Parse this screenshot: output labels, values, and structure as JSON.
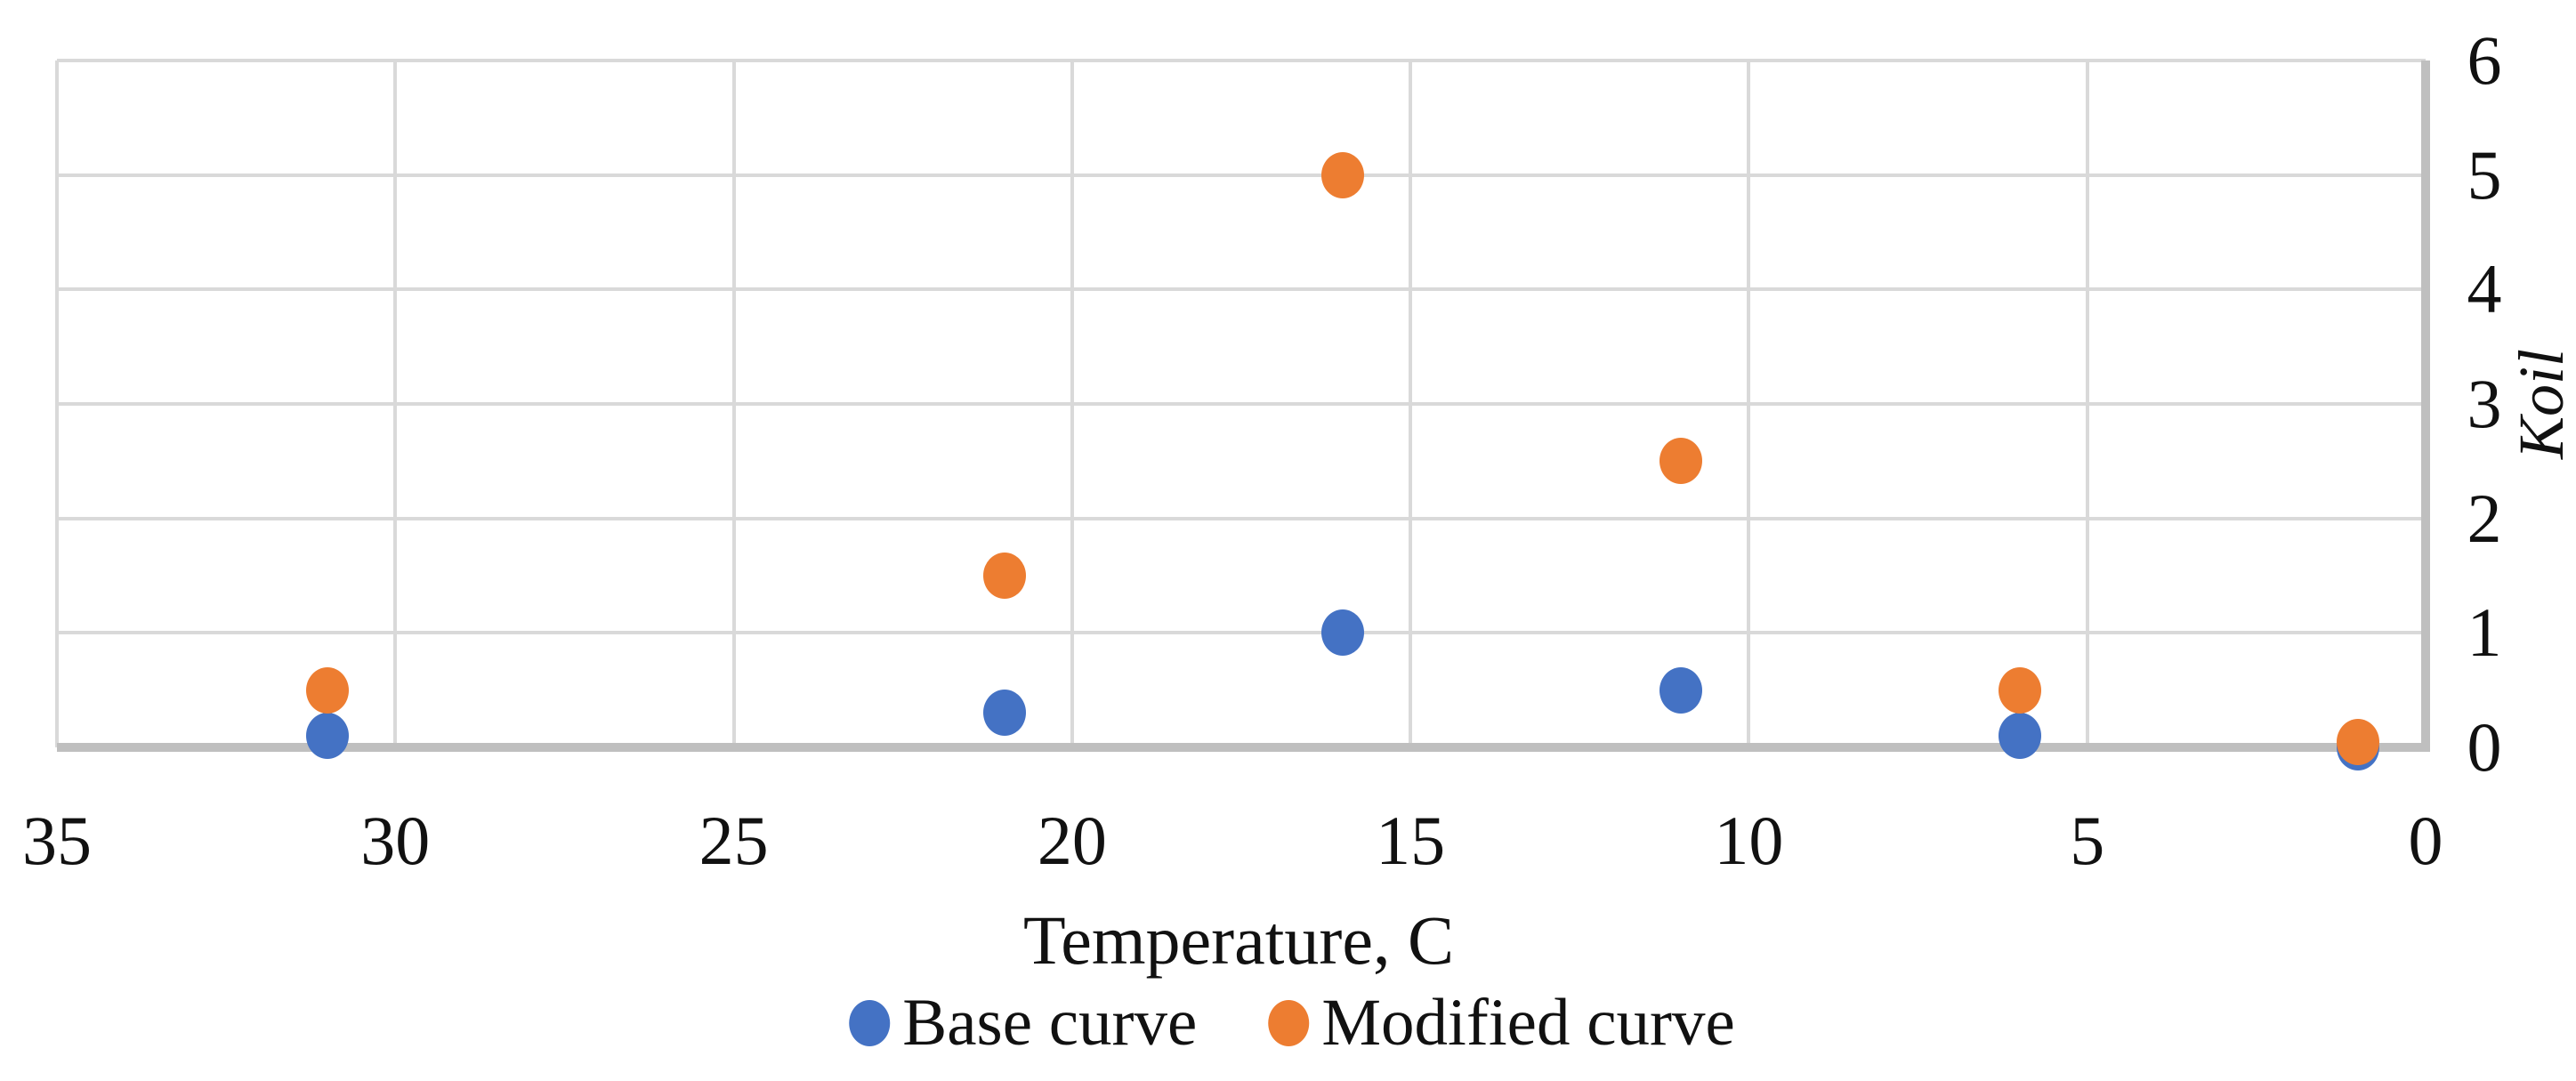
{
  "chart_data": {
    "type": "scatter",
    "title": "",
    "xlabel": "Temperature, C",
    "ylabel": "Koil",
    "grid": true,
    "legend_position": "bottom",
    "x_axis": {
      "min": 35,
      "max": 0,
      "reversed": true,
      "ticks": [
        35,
        30,
        25,
        20,
        15,
        10,
        5,
        0
      ]
    },
    "y_axis": {
      "min": 0,
      "max": 6,
      "side": "right",
      "ticks": [
        6,
        5,
        4,
        3,
        2,
        1,
        0
      ]
    },
    "x": [
      31,
      21,
      16,
      11,
      6,
      1
    ],
    "series": [
      {
        "name": "Base curve",
        "color": "#4472C4",
        "values": [
          0.1,
          0.3,
          1.0,
          0.5,
          0.1,
          0.0
        ]
      },
      {
        "name": "Modified curve",
        "color": "#ED7D31",
        "values": [
          0.5,
          1.5,
          5.0,
          2.5,
          0.5,
          0.05
        ]
      }
    ],
    "colors": {
      "grid": "#D9D9D9",
      "axis": "#BFBFBF",
      "text": "#111111"
    }
  }
}
